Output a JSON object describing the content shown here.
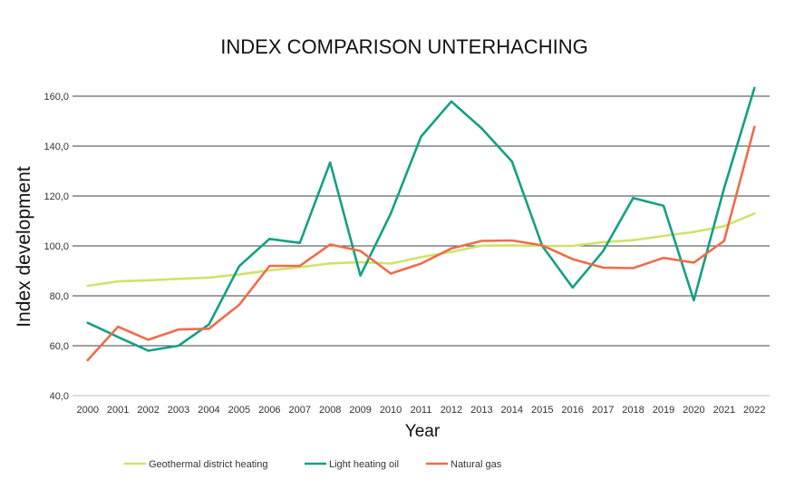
{
  "chart_data": {
    "type": "line",
    "title": "INDEX COMPARISON UNTERHACHING",
    "xlabel": "Year",
    "ylabel": "Index development",
    "ylim": [
      40,
      160
    ],
    "yticks": [
      "40,0",
      "60,0",
      "80,0",
      "100,0",
      "120,0",
      "140,0",
      "160,0"
    ],
    "ytick_values": [
      40,
      60,
      80,
      100,
      120,
      140,
      160
    ],
    "categories": [
      "2000",
      "2001",
      "2002",
      "2003",
      "2004",
      "2005",
      "2006",
      "2007",
      "2008",
      "2009",
      "2010",
      "2011",
      "2012",
      "2013",
      "2014",
      "2015",
      "2016",
      "2017",
      "2018",
      "2019",
      "2020",
      "2021",
      "2022"
    ],
    "grid": "horizontal",
    "legend_position": "bottom",
    "series": [
      {
        "name": "Geothermal district heating",
        "color": "#cfe36b",
        "values": [
          84.0,
          85.8,
          86.2,
          86.8,
          87.3,
          88.6,
          90.2,
          91.5,
          93.0,
          93.5,
          92.9,
          95.5,
          97.6,
          100.1,
          100.2,
          100.0,
          100.0,
          101.5,
          102.3,
          104.0,
          105.6,
          107.9,
          113.0
        ]
      },
      {
        "name": "Light heating oil",
        "color": "#14a085",
        "values": [
          69.2,
          63.5,
          58.0,
          60.0,
          68.5,
          91.9,
          102.8,
          101.2,
          133.4,
          88.1,
          113.0,
          143.8,
          157.9,
          147.1,
          133.8,
          100.0,
          83.3,
          97.8,
          119.2,
          116.1,
          78.2,
          123.1,
          163.3
        ]
      },
      {
        "name": "Natural gas",
        "color": "#ef6c4b",
        "values": [
          54.2,
          67.6,
          62.4,
          66.5,
          66.8,
          76.4,
          92.0,
          92.0,
          100.6,
          98.0,
          88.9,
          92.9,
          99.0,
          102.0,
          102.2,
          100.2,
          94.7,
          91.3,
          91.1,
          95.2,
          93.3,
          102.0,
          147.7
        ]
      }
    ]
  }
}
